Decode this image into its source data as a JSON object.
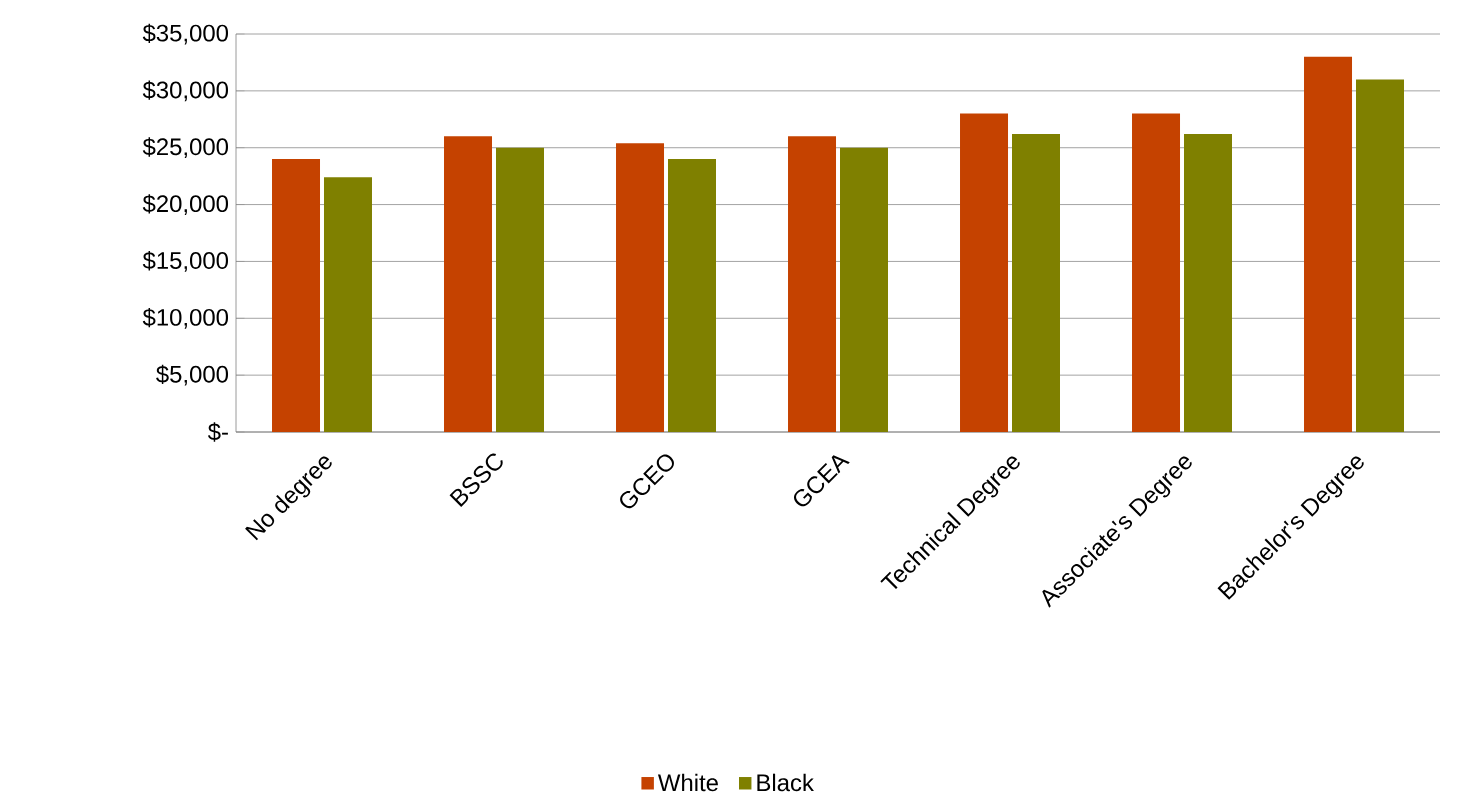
{
  "chart_data": {
    "type": "bar",
    "categories": [
      "No degree",
      "BSSC",
      "GCEO",
      "GCEA",
      "Technical Degree",
      "Associate's Degree",
      "Bachelor's Degree"
    ],
    "series": [
      {
        "name": "White",
        "color": "#c54200",
        "values": [
          24000,
          26000,
          25400,
          26000,
          28000,
          28000,
          33000
        ]
      },
      {
        "name": "Black",
        "color": "#7f8000",
        "values": [
          22400,
          25000,
          24000,
          25000,
          26200,
          26200,
          31000
        ]
      }
    ],
    "ylim": [
      0,
      35000
    ],
    "yticks": [
      {
        "value": 0,
        "label": "$-"
      },
      {
        "value": 5000,
        "label": "$5,000"
      },
      {
        "value": 10000,
        "label": "$10,000"
      },
      {
        "value": 15000,
        "label": "$15,000"
      },
      {
        "value": 20000,
        "label": "$20,000"
      },
      {
        "value": 25000,
        "label": "$25,000"
      },
      {
        "value": 30000,
        "label": "$30,000"
      },
      {
        "value": 35000,
        "label": "$35,000"
      }
    ],
    "grid": "y",
    "legend": "bottom"
  }
}
